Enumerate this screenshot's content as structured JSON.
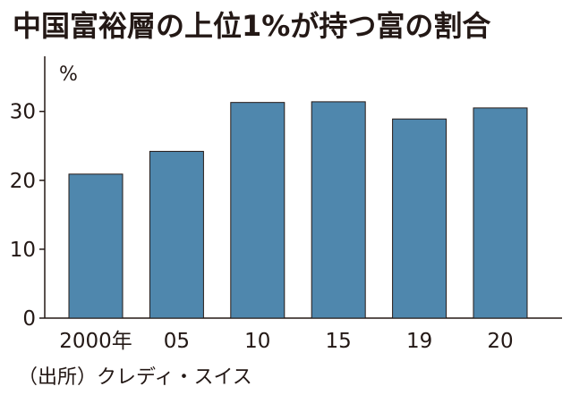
{
  "title": "中国富裕層の上位1%が持つ富の割合",
  "source": "（出所）クレディ・スイス",
  "chart_data": {
    "type": "bar",
    "title": "中国富裕層の上位1%が持つ富の割合",
    "categories": [
      "2000年",
      "05",
      "10",
      "15",
      "19",
      "20"
    ],
    "series": [
      {
        "values": [
          20.9,
          24.2,
          31.3,
          31.4,
          28.9,
          30.5
        ]
      }
    ],
    "ylabel": "%",
    "xlabel": "",
    "ylim": [
      0,
      38
    ],
    "yticks": [
      0,
      10,
      20,
      30
    ],
    "bar_color": "#4f87ad",
    "axis_color": "#231815",
    "grid": false,
    "legend": "none"
  }
}
